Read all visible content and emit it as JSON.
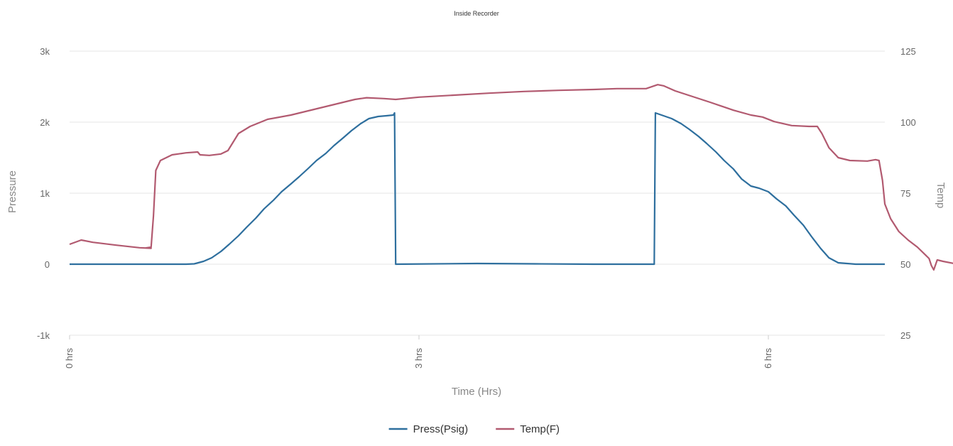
{
  "chart_data": {
    "type": "line",
    "title": "Inside Recorder",
    "xlabel": "Time (Hrs)",
    "ylabel_left": "Pressure",
    "ylabel_right": "Temp",
    "xlim": [
      0,
      7
    ],
    "x_ticks": [
      {
        "value": 0,
        "label": "0 hrs"
      },
      {
        "value": 3,
        "label": "3 hrs"
      },
      {
        "value": 6,
        "label": "6 hrs"
      }
    ],
    "y_left": {
      "lim": [
        -1000,
        3000
      ],
      "ticks": [
        {
          "value": -1000,
          "label": "-1k"
        },
        {
          "value": 0,
          "label": "0"
        },
        {
          "value": 1000,
          "label": "1k"
        },
        {
          "value": 2000,
          "label": "2k"
        },
        {
          "value": 3000,
          "label": "3k"
        }
      ]
    },
    "y_right": {
      "lim": [
        25,
        125
      ],
      "ticks": [
        {
          "value": 25,
          "label": "25"
        },
        {
          "value": 50,
          "label": "50"
        },
        {
          "value": 75,
          "label": "75"
        },
        {
          "value": 100,
          "label": "100"
        },
        {
          "value": 125,
          "label": "125"
        }
      ]
    },
    "grid": true,
    "legend_position": "bottom",
    "series": [
      {
        "name": "Press(Psig)",
        "axis": "left",
        "color": "#2e6f9e",
        "points": [
          [
            0,
            0
          ],
          [
            0.5,
            0
          ],
          [
            1.0,
            0
          ],
          [
            1.07,
            5
          ],
          [
            1.15,
            40
          ],
          [
            1.22,
            90
          ],
          [
            1.3,
            180
          ],
          [
            1.37,
            280
          ],
          [
            1.45,
            400
          ],
          [
            1.52,
            520
          ],
          [
            1.6,
            650
          ],
          [
            1.67,
            780
          ],
          [
            1.75,
            900
          ],
          [
            1.82,
            1020
          ],
          [
            1.9,
            1130
          ],
          [
            1.97,
            1230
          ],
          [
            2.05,
            1350
          ],
          [
            2.12,
            1460
          ],
          [
            2.2,
            1560
          ],
          [
            2.27,
            1670
          ],
          [
            2.35,
            1780
          ],
          [
            2.42,
            1880
          ],
          [
            2.5,
            1980
          ],
          [
            2.57,
            2050
          ],
          [
            2.65,
            2080
          ],
          [
            2.72,
            2090
          ],
          [
            2.78,
            2100
          ],
          [
            2.79,
            2130
          ],
          [
            2.8,
            0
          ],
          [
            3.5,
            10
          ],
          [
            4.0,
            5
          ],
          [
            4.5,
            0
          ],
          [
            5.02,
            0
          ],
          [
            5.03,
            2130
          ],
          [
            5.1,
            2090
          ],
          [
            5.17,
            2050
          ],
          [
            5.25,
            1980
          ],
          [
            5.32,
            1900
          ],
          [
            5.4,
            1800
          ],
          [
            5.47,
            1700
          ],
          [
            5.55,
            1580
          ],
          [
            5.62,
            1460
          ],
          [
            5.7,
            1340
          ],
          [
            5.77,
            1200
          ],
          [
            5.85,
            1100
          ],
          [
            5.92,
            1070
          ],
          [
            6.0,
            1020
          ],
          [
            6.07,
            920
          ],
          [
            6.15,
            820
          ],
          [
            6.22,
            690
          ],
          [
            6.3,
            550
          ],
          [
            6.37,
            390
          ],
          [
            6.45,
            220
          ],
          [
            6.52,
            90
          ],
          [
            6.6,
            20
          ],
          [
            6.75,
            0
          ],
          [
            7.0,
            0
          ]
        ]
      },
      {
        "name": "Temp(F)",
        "axis": "right",
        "color": "#b25a70",
        "points": [
          [
            0,
            57
          ],
          [
            0.1,
            58.5
          ],
          [
            0.2,
            57.7
          ],
          [
            0.4,
            56.7
          ],
          [
            0.6,
            55.8
          ],
          [
            0.7,
            55.6
          ],
          [
            0.65,
            55.7
          ],
          [
            0.7,
            56
          ],
          [
            0.72,
            67
          ],
          [
            0.74,
            83
          ],
          [
            0.78,
            86.5
          ],
          [
            0.88,
            88.5
          ],
          [
            1.0,
            89.2
          ],
          [
            1.1,
            89.5
          ],
          [
            1.12,
            88.5
          ],
          [
            1.2,
            88.3
          ],
          [
            1.3,
            88.8
          ],
          [
            1.36,
            90
          ],
          [
            1.45,
            96
          ],
          [
            1.55,
            98.5
          ],
          [
            1.7,
            101
          ],
          [
            1.9,
            102.5
          ],
          [
            2.1,
            104.5
          ],
          [
            2.3,
            106.5
          ],
          [
            2.45,
            108
          ],
          [
            2.55,
            108.6
          ],
          [
            2.7,
            108.3
          ],
          [
            2.8,
            108
          ],
          [
            3.0,
            108.8
          ],
          [
            3.3,
            109.5
          ],
          [
            3.6,
            110.2
          ],
          [
            3.9,
            110.8
          ],
          [
            4.2,
            111.2
          ],
          [
            4.5,
            111.5
          ],
          [
            4.7,
            111.8
          ],
          [
            4.95,
            111.8
          ],
          [
            5.05,
            113.2
          ],
          [
            5.1,
            112.8
          ],
          [
            5.2,
            111
          ],
          [
            5.35,
            109
          ],
          [
            5.5,
            107
          ],
          [
            5.7,
            104.2
          ],
          [
            5.85,
            102.5
          ],
          [
            5.95,
            101.8
          ],
          [
            6.05,
            100.2
          ],
          [
            6.2,
            98.8
          ],
          [
            6.35,
            98.5
          ],
          [
            6.42,
            98.5
          ],
          [
            6.46,
            96
          ],
          [
            6.52,
            91
          ],
          [
            6.6,
            87.5
          ],
          [
            6.7,
            86.5
          ],
          [
            6.85,
            86.3
          ],
          [
            6.92,
            86.8
          ],
          [
            6.95,
            86.5
          ],
          [
            6.98,
            79.5
          ],
          [
            7.0,
            71.2
          ],
          [
            7.05,
            66
          ],
          [
            7.12,
            61.5
          ],
          [
            7.2,
            58.5
          ],
          [
            7.28,
            56
          ],
          [
            7.35,
            53.2
          ],
          [
            7.38,
            52
          ],
          [
            7.4,
            49.5
          ],
          [
            7.42,
            48
          ],
          [
            7.45,
            51.5
          ],
          [
            7.5,
            51
          ],
          [
            7.6,
            50.2
          ]
        ]
      }
    ]
  }
}
